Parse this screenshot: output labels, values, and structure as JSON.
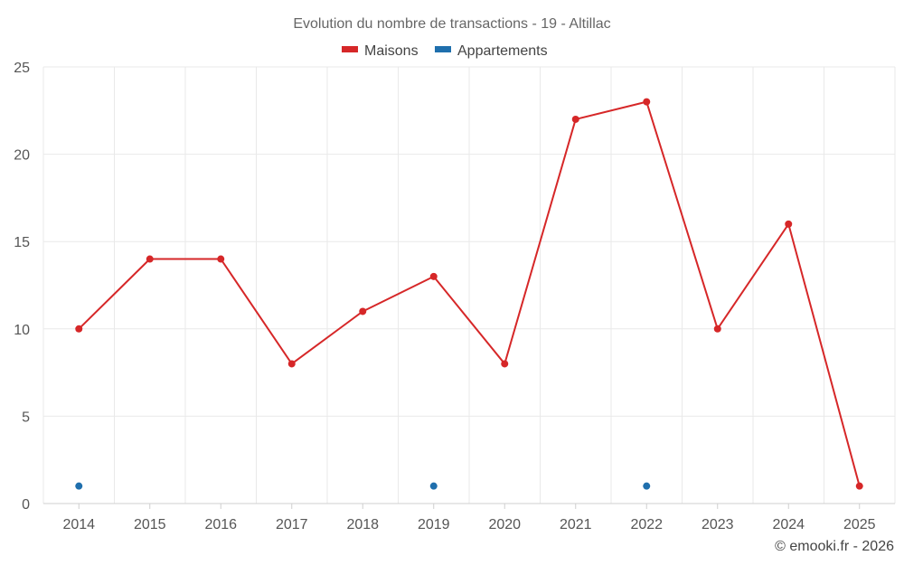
{
  "chart_data": {
    "type": "line",
    "title": "Evolution du nombre de transactions - 19 - Altillac",
    "xlabel": "",
    "ylabel": "",
    "categories": [
      "2014",
      "2015",
      "2016",
      "2017",
      "2018",
      "2019",
      "2020",
      "2021",
      "2022",
      "2023",
      "2024",
      "2025"
    ],
    "ylim": [
      0,
      25
    ],
    "yticks": [
      0,
      5,
      10,
      15,
      20,
      25
    ],
    "grid": true,
    "legend_position": "top-center",
    "series": [
      {
        "name": "Maisons",
        "color": "#d62728",
        "style": "line-with-markers",
        "values": [
          10,
          14,
          14,
          8,
          11,
          13,
          8,
          22,
          23,
          10,
          16,
          1
        ]
      },
      {
        "name": "Appartements",
        "color": "#1f6fad",
        "style": "markers-only",
        "values": [
          1,
          null,
          null,
          null,
          null,
          1,
          null,
          null,
          1,
          null,
          null,
          null
        ]
      }
    ]
  },
  "credit": "© emooki.fr - 2026"
}
